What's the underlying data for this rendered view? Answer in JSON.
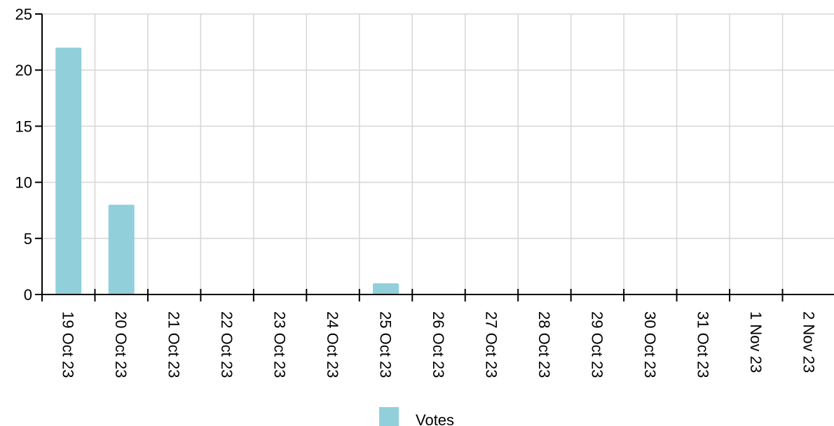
{
  "chart_data": {
    "type": "bar",
    "title": "",
    "xlabel": "",
    "ylabel": "",
    "categories": [
      "19 Oct 23",
      "20 Oct 23",
      "21 Oct 23",
      "22 Oct 23",
      "23 Oct 23",
      "24 Oct 23",
      "25 Oct 23",
      "26 Oct 23",
      "27 Oct 23",
      "28 Oct 23",
      "29 Oct 23",
      "30 Oct 23",
      "31 Oct 23",
      "1 Nov 23",
      "2 Nov 23"
    ],
    "series": [
      {
        "name": "Votes",
        "color": "#91cfdb",
        "values": [
          22,
          8,
          0,
          0,
          0,
          0,
          1,
          0,
          0,
          0,
          0,
          0,
          0,
          0,
          0
        ]
      }
    ],
    "ylim": [
      0,
      25
    ],
    "yticks": [
      0,
      5,
      10,
      15,
      20,
      25
    ],
    "grid": true,
    "legend_position": "bottom-center",
    "x_tick_rotation": "90deg"
  }
}
